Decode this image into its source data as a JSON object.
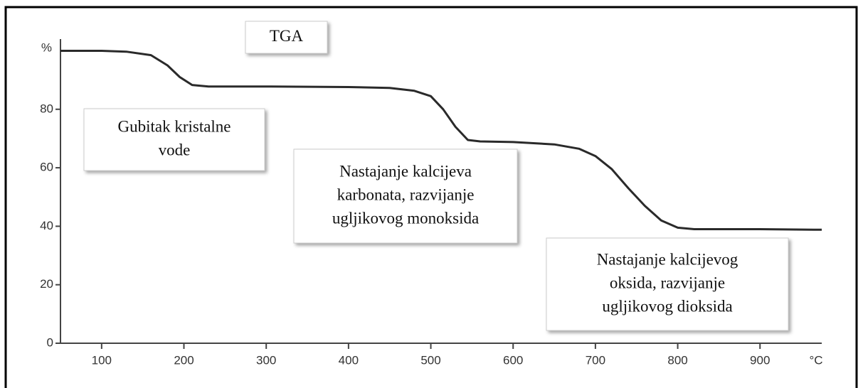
{
  "chart_data": {
    "type": "line",
    "title": "TGA",
    "ylabel": "%",
    "xlabel": "°C",
    "x": [
      50,
      100,
      130,
      160,
      180,
      195,
      210,
      230,
      300,
      400,
      450,
      480,
      500,
      515,
      530,
      545,
      560,
      600,
      650,
      680,
      700,
      720,
      740,
      760,
      780,
      800,
      820,
      900,
      975
    ],
    "values": [
      100,
      100,
      99.7,
      98.5,
      95,
      91,
      88.3,
      87.8,
      87.8,
      87.6,
      87.3,
      86.3,
      84.5,
      80,
      74,
      69.5,
      69,
      68.8,
      68,
      66.5,
      64,
      59.5,
      53,
      47,
      42,
      39.5,
      39,
      39,
      38.8
    ],
    "color": "#2a2a2a",
    "xlim": [
      50,
      975
    ],
    "xticks": [
      100,
      200,
      300,
      400,
      500,
      600,
      700,
      800,
      900
    ],
    "ylim": [
      0,
      104
    ],
    "yticks": [
      0,
      20,
      40,
      60,
      80
    ],
    "annotations": [
      {
        "lines": [
          "Gubitak kristalne",
          "vode"
        ]
      },
      {
        "lines": [
          "Nastajanje kalcijeva",
          "karbonata, razvijanje",
          "ugljikovog monoksida"
        ]
      },
      {
        "lines": [
          "Nastajanje kalcijevog",
          "oksida, razvijanje",
          "ugljikovog dioksida"
        ]
      }
    ]
  }
}
